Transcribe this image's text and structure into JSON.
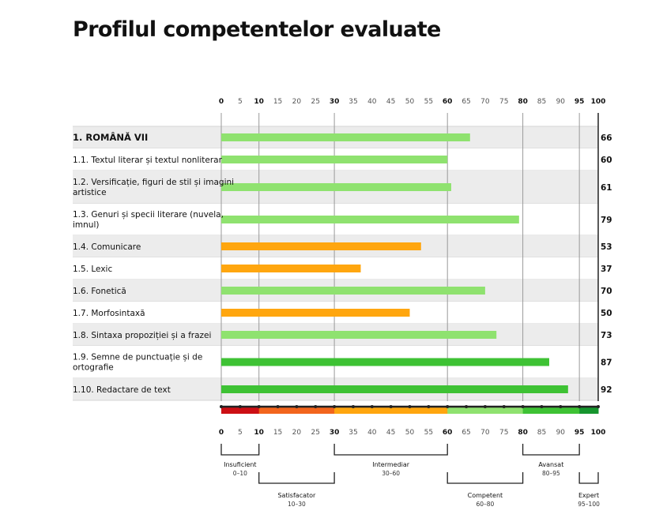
{
  "title": "Profilul competentelor evaluate",
  "chart_data": {
    "type": "bar",
    "orientation": "horizontal",
    "xlim": [
      0,
      100
    ],
    "ticks": [
      0,
      5,
      10,
      15,
      20,
      25,
      30,
      35,
      40,
      45,
      50,
      55,
      60,
      65,
      70,
      75,
      80,
      85,
      90,
      95,
      100
    ],
    "major_ticks": [
      0,
      10,
      30,
      60,
      80,
      95,
      100
    ],
    "grid": "vertical lines at 0, 10, 30, 60, 80, 95",
    "categories": [
      "1. ROMÂNĂ VII",
      "1.1. Textul literar și textul nonliterar",
      "1.2. Versificație, figuri de stil și imagini artistice",
      "1.3. Genuri și specii literare (nuvela, imnul)",
      "1.4. Comunicare",
      "1.5. Lexic",
      "1.6. Fonetică",
      "1.7. Morfosintaxă",
      "1.8. Sintaxa propoziției și a frazei",
      "1.9. Semne de punctuație și de ortografie",
      "1.10. Redactare de text"
    ],
    "values": [
      66,
      60,
      61,
      79,
      53,
      37,
      70,
      50,
      73,
      87,
      92
    ],
    "levels": [
      {
        "name": "Insuficient",
        "range_label": "0–10",
        "from": 0,
        "to": 10,
        "color": "#cc0f14",
        "position": "top"
      },
      {
        "name": "Satisfacator",
        "range_label": "10–30",
        "from": 10,
        "to": 30,
        "color": "#f2651d",
        "position": "bottom"
      },
      {
        "name": "Intermediar",
        "range_label": "30–60",
        "from": 30,
        "to": 60,
        "color": "#ffa60f",
        "position": "top"
      },
      {
        "name": "Competent",
        "range_label": "60–80",
        "from": 60,
        "to": 80,
        "color": "#8fe26f",
        "position": "bottom"
      },
      {
        "name": "Avansat",
        "range_label": "80–95",
        "from": 80,
        "to": 95,
        "color": "#3ec234",
        "position": "top"
      },
      {
        "name": "Expert",
        "range_label": "95–100",
        "from": 95,
        "to": 100,
        "color": "#16952e",
        "position": "bottom"
      }
    ],
    "bar_colors": {
      "intermediar": "#ffa60f",
      "competent": "#8fe26f",
      "avansat": "#3ec234"
    }
  }
}
